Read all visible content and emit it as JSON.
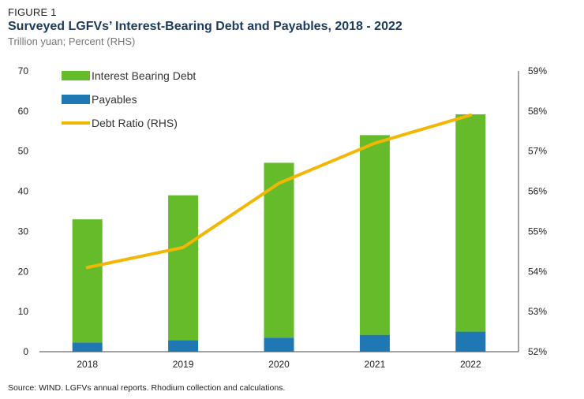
{
  "header": {
    "kicker": "FIGURE 1",
    "title": "Surveyed LGFVs’ Interest-Bearing Debt and Payables, 2018 - 2022",
    "subtitle": "Trillion yuan; Percent (RHS)"
  },
  "footer": {
    "source": "Source: WIND. LGFVs annual reports. Rhodium collection and calculations."
  },
  "chart_data": {
    "type": "bar",
    "stacked": true,
    "categories": [
      "2018",
      "2019",
      "2020",
      "2021",
      "2022"
    ],
    "series": [
      {
        "name": "Payables",
        "type": "bar",
        "axis": "left",
        "color": "#1f78b4",
        "values": [
          2.3,
          2.9,
          3.5,
          4.2,
          5.0
        ]
      },
      {
        "name": "Interest Bearing Debt",
        "type": "bar",
        "axis": "left",
        "color": "#66bb2a",
        "values": [
          30.7,
          36.1,
          43.6,
          49.8,
          54.2
        ]
      },
      {
        "name": "Debt Ratio (RHS)",
        "type": "line",
        "axis": "right",
        "color": "#f2b705",
        "values": [
          54.1,
          54.6,
          56.2,
          57.2,
          57.9
        ]
      }
    ],
    "legend": [
      "Interest Bearing Debt",
      "Payables",
      "Debt Ratio (RHS)"
    ],
    "y_left": {
      "min": 0,
      "max": 70,
      "step": 10,
      "ticks": [
        "0",
        "10",
        "20",
        "30",
        "40",
        "50",
        "60",
        "70"
      ]
    },
    "y_right": {
      "min": 52,
      "max": 59,
      "step": 1,
      "ticks": [
        "52%",
        "53%",
        "54%",
        "55%",
        "56%",
        "57%",
        "58%",
        "59%"
      ]
    },
    "grid": false,
    "legend_position": "top-left"
  }
}
